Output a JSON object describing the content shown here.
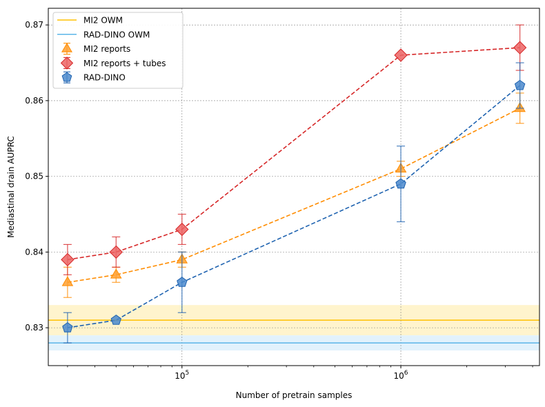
{
  "chart_data": {
    "type": "line",
    "xscale": "log",
    "xlabel": "Number of pretrain samples",
    "ylabel": "Mediastinal drain AUPRC",
    "xlim": [
      24500,
      4300000
    ],
    "ylim": [
      0.825,
      0.8722
    ],
    "x_major_ticks": [
      {
        "value": 100000,
        "base": "10",
        "exp": "5"
      },
      {
        "value": 1000000,
        "base": "10",
        "exp": "6"
      }
    ],
    "y_ticks": [
      0.83,
      0.84,
      0.85,
      0.86,
      0.87
    ],
    "y_tick_labels": [
      "0.83",
      "0.84",
      "0.85",
      "0.86",
      "0.87"
    ],
    "grid": true,
    "legend_position": "top-left",
    "baselines": [
      {
        "name": "MI2 OWM",
        "value": 0.831,
        "band": [
          0.829,
          0.833
        ],
        "color": "#ffc000",
        "band_color": "#fff2c4"
      },
      {
        "name": "RAD-DINO OWM",
        "value": 0.828,
        "band": [
          0.827,
          0.829
        ],
        "color": "#5ab4e8",
        "band_color": "#ddf0fb"
      }
    ],
    "series": [
      {
        "name": "MI2 reports",
        "marker": "triangle",
        "color": "#ff8c00",
        "fill": "#ffa030",
        "x": [
          30000,
          50000,
          100000,
          1000000,
          3500000
        ],
        "y": [
          0.836,
          0.837,
          0.839,
          0.851,
          0.859
        ],
        "err": [
          0.002,
          0.001,
          0.001,
          0.001,
          0.002
        ]
      },
      {
        "name": "MI2 reports + tubes",
        "marker": "diamond",
        "color": "#d62728",
        "fill": "#ec6464",
        "x": [
          30000,
          50000,
          100000,
          1000000,
          3500000
        ],
        "y": [
          0.839,
          0.84,
          0.843,
          0.866,
          0.867
        ],
        "err": [
          0.002,
          0.002,
          0.002,
          0.0,
          0.003
        ]
      },
      {
        "name": "RAD-DINO",
        "marker": "pentagon",
        "color": "#1f63b0",
        "fill": "#4a88cc",
        "x": [
          30000,
          50000,
          100000,
          1000000,
          3500000
        ],
        "y": [
          0.83,
          0.831,
          0.836,
          0.849,
          0.862
        ],
        "err": [
          0.002,
          0.0,
          0.004,
          0.005,
          0.003
        ]
      }
    ]
  }
}
